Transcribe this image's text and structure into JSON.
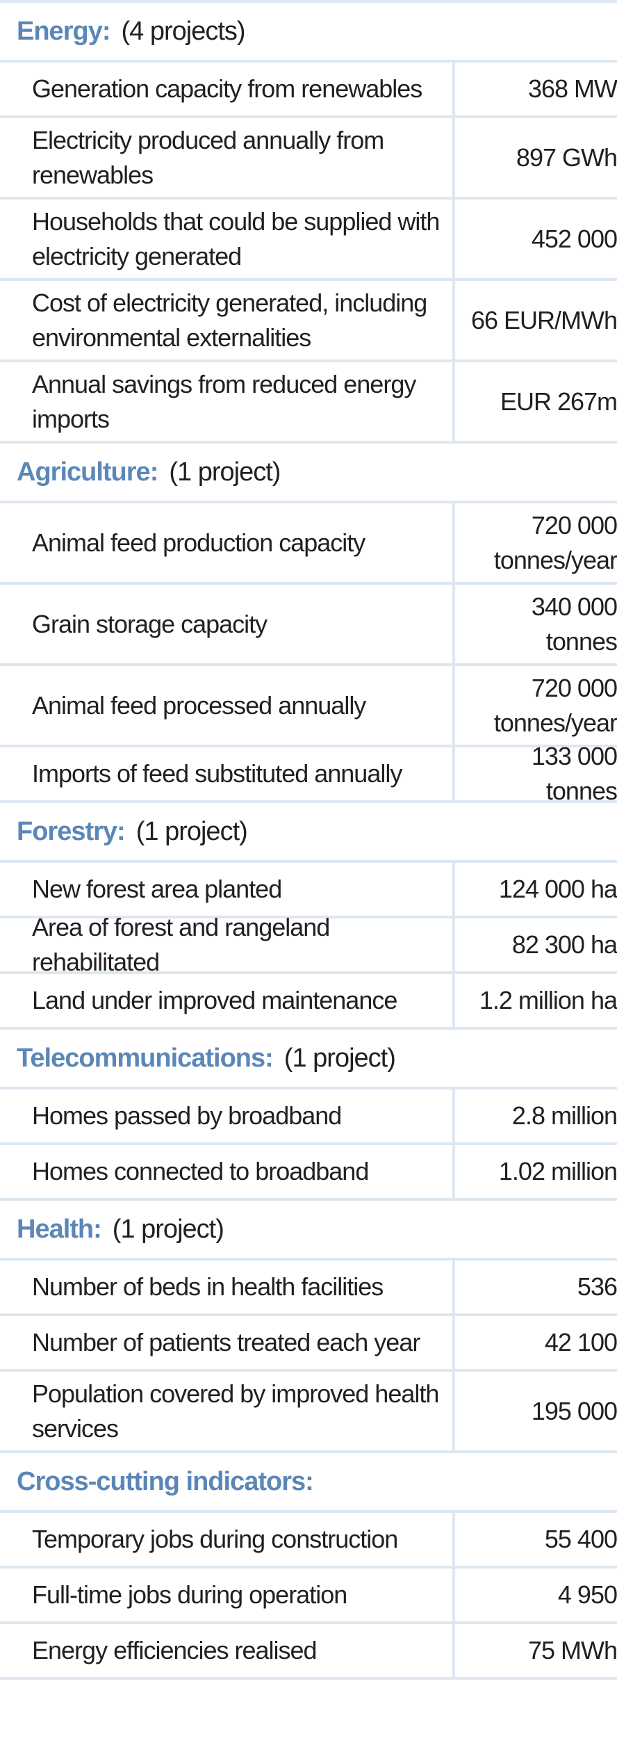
{
  "sections": [
    {
      "title": "Energy:",
      "count": "(4 projects)",
      "rows": [
        {
          "label": "Generation capacity from renewables",
          "value": "368 MW"
        },
        {
          "label": "Electricity produced annually from renewables",
          "value": "897 GWh"
        },
        {
          "label": "Households that could be supplied with electricity generated",
          "value": "452 000"
        },
        {
          "label": "Cost of electricity generated, including environmental externalities",
          "value": "66 EUR/MWh"
        },
        {
          "label": "Annual savings from reduced energy imports",
          "value": "EUR 267m"
        }
      ]
    },
    {
      "title": "Agriculture:",
      "count": "(1 project)",
      "rows": [
        {
          "label": "Animal feed production capacity",
          "value": "720 000\ntonnes/year"
        },
        {
          "label": "Grain storage capacity",
          "value": "340 000 tonnes"
        },
        {
          "label": "Animal feed processed annually",
          "value": "720 000\ntonnes/year"
        },
        {
          "label": "Imports of feed substituted annually",
          "value": "133 000 tonnes"
        }
      ]
    },
    {
      "title": "Forestry:",
      "count": "(1 project)",
      "rows": [
        {
          "label": "New forest area planted",
          "value": "124 000 ha"
        },
        {
          "label": "Area of forest and rangeland rehabilitated",
          "value": "82 300 ha"
        },
        {
          "label": "Land under improved maintenance",
          "value": "1.2 million ha"
        }
      ]
    },
    {
      "title": "Telecommunications:",
      "count": "(1 project)",
      "rows": [
        {
          "label": "Homes passed by broadband",
          "value": "2.8 million"
        },
        {
          "label": "Homes connected to broadband",
          "value": "1.02 million"
        }
      ]
    },
    {
      "title": "Health:",
      "count": "(1 project)",
      "rows": [
        {
          "label": "Number of beds in health facilities",
          "value": "536"
        },
        {
          "label": "Number of patients treated each year",
          "value": "42 100"
        },
        {
          "label": "Population covered by improved health services",
          "value": "195 000"
        }
      ]
    },
    {
      "title": "Cross-cutting indicators:",
      "count": "",
      "rows": [
        {
          "label": "Temporary jobs during construction",
          "value": "55 400"
        },
        {
          "label": "Full-time jobs during operation",
          "value": "4 950"
        },
        {
          "label": "Energy efficiencies realised",
          "value": "75 MWh"
        }
      ]
    }
  ]
}
